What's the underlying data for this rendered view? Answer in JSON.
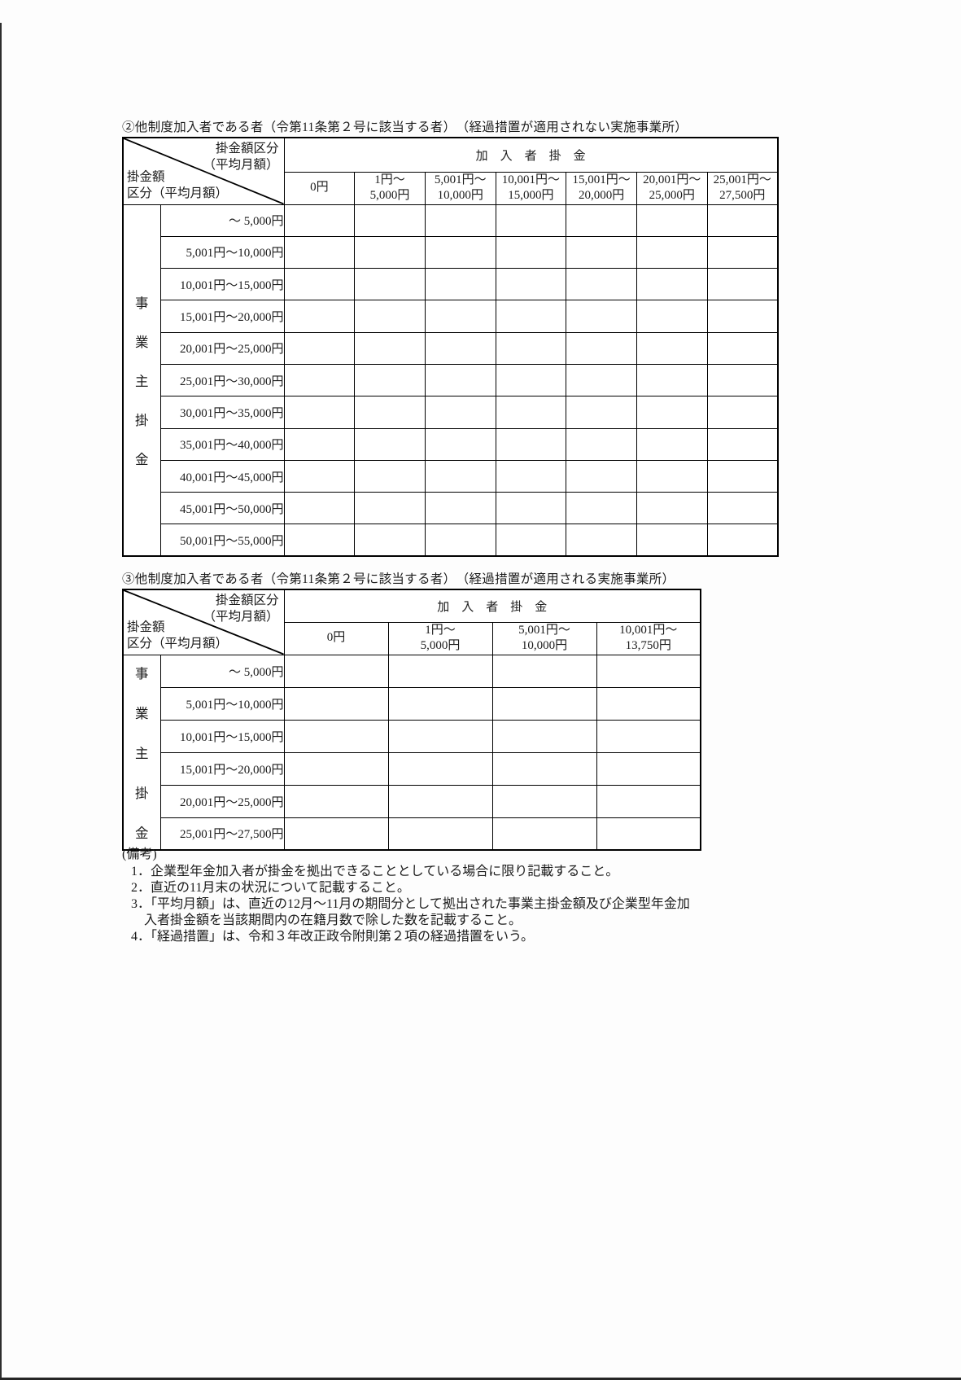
{
  "document": {
    "ink_color": "#1b1b1b",
    "tables": [
      {
        "title": "②他制度加入者である者（令第11条第２号に該当する者）　（経過措置が適用されない実施事業所）",
        "corner": {
          "top_right": "掛金額区分\n（平均月額）",
          "bottom_left": "掛金額\n区分（平均月額）"
        },
        "span_header": "加　入　者　掛　金",
        "axis_label_chars": [
          "事",
          "業",
          "主",
          "掛",
          "金"
        ],
        "column_headers": [
          "0円",
          "1円～\n5,000円",
          "5,001円～\n10,000円",
          "10,001円～\n15,000円",
          "15,001円～\n20,000円",
          "20,001円～\n25,000円",
          "25,001円～\n27,500円"
        ],
        "row_headers": [
          "～ 5,000円",
          "5,001円～10,000円",
          "10,001円～15,000円",
          "15,001円～20,000円",
          "20,001円～25,000円",
          "25,001円～30,000円",
          "30,001円～35,000円",
          "35,001円～40,000円",
          "40,001円～45,000円",
          "45,001円～50,000円",
          "50,001円～55,000円"
        ],
        "cell_values_note": "all data cells are blank on the form"
      },
      {
        "title": "③他制度加入者である者（令第11条第２号に該当する者）　（経過措置が適用される実施事業所）",
        "corner": {
          "top_right": "掛金額区分\n（平均月額）",
          "bottom_left": "掛金額\n区分（平均月額）"
        },
        "span_header": "加　入　者　掛　金",
        "axis_label_chars": [
          "事",
          "業",
          "主",
          "掛",
          "金"
        ],
        "column_headers": [
          "0円",
          "1円～\n5,000円",
          "5,001円～\n10,000円",
          "10,001円～\n13,750円"
        ],
        "row_headers": [
          "～ 5,000円",
          "5,001円～10,000円",
          "10,001円～15,000円",
          "15,001円～20,000円",
          "20,001円～25,000円",
          "25,001円～27,500円"
        ],
        "cell_values_note": "all data cells are blank on the form"
      }
    ],
    "notes": {
      "heading": "(備考)",
      "items": [
        "1．企業型年金加入者が掛金を拠出できることとしている場合に限り記載すること。",
        "2．直近の11月末の状況について記載すること。",
        "3．「平均月額」は、直近の12月～11月の期間分として拠出された事業主掛金額及び企業型年金加\n　入者掛金額を当該期間内の在籍月数で除した数を記載すること。",
        "4．「経過措置」は、令和３年改正政令附則第２項の経過措置をいう。"
      ]
    }
  }
}
